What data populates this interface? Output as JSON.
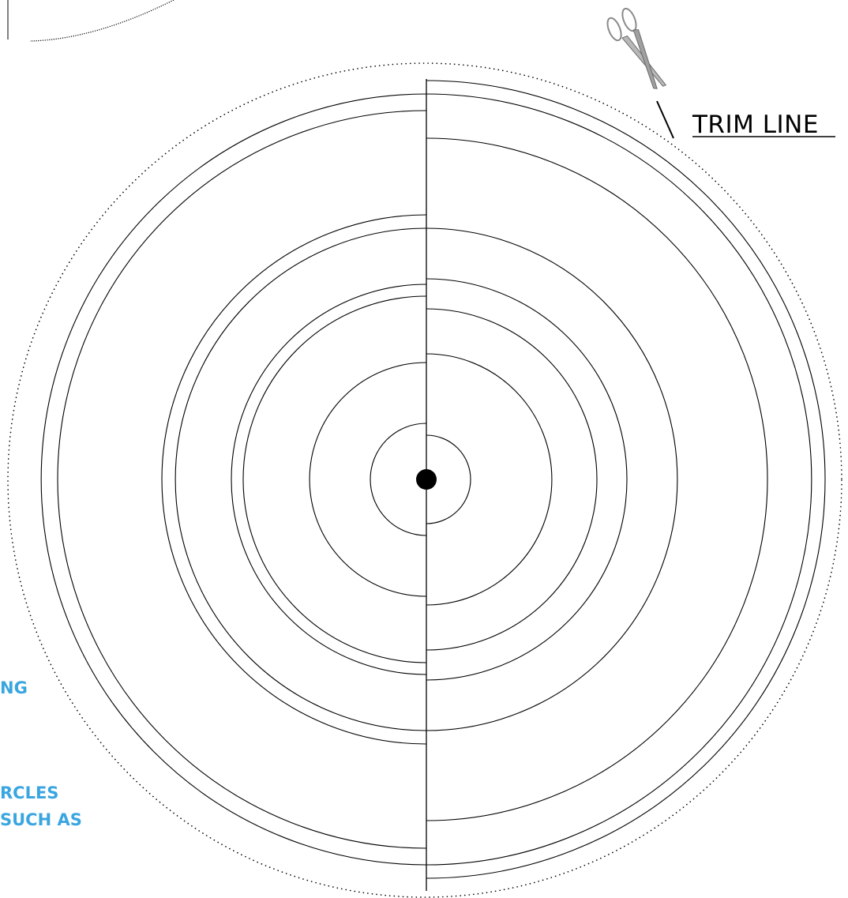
{
  "labels": {
    "trim_line": "TRIM LINE"
  },
  "side_notes": [
    "NG",
    "RCLES",
    "SUCH AS"
  ],
  "colors": {
    "line": "#000000",
    "note": "#3aa6e0",
    "scissors_handle": "#8a8a8a",
    "scissors_blade": "#9a9a9a"
  },
  "icons": {
    "scissors": "scissors-icon",
    "center": "center-dot"
  }
}
